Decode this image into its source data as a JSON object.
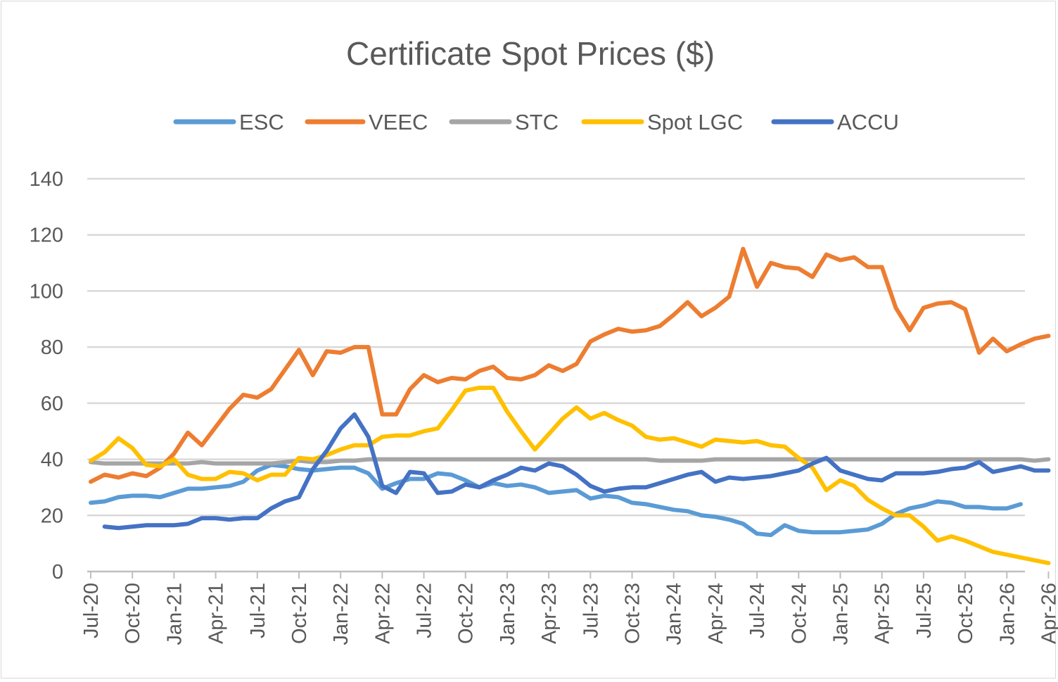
{
  "chart_data": {
    "type": "line",
    "title": "Certificate Spot Prices ($)",
    "xlabel": "",
    "ylabel": "",
    "ylim": [
      0,
      140
    ],
    "yticks": [
      "0",
      "20",
      "40",
      "60",
      "80",
      "100",
      "120",
      "140"
    ],
    "xtick_labels": [
      "Jul-20",
      "Oct-20",
      "Jan-21",
      "Apr-21",
      "Jul-21",
      "Oct-21",
      "Jan-22",
      "Apr-22",
      "Jul-22",
      "Oct-22",
      "Jan-23",
      "Apr-23",
      "Jul-23",
      "Oct-23",
      "Jan-24",
      "Apr-24",
      "Jul-24",
      "Oct-24",
      "Jan-25",
      "Apr-25",
      "Jul-25",
      "Oct-25",
      "Jan-26",
      "Apr-26"
    ],
    "x_start": "Jul-20",
    "grid": "horizontal",
    "legend": "top",
    "series": [
      {
        "name": "ESC",
        "color": "#5b9bd5",
        "values": [
          24.5,
          25,
          26.5,
          27,
          27,
          26.5,
          28,
          29.5,
          29.5,
          30,
          30.5,
          32,
          36,
          38,
          37.5,
          36.5,
          36,
          36.5,
          37,
          37,
          35,
          29.5,
          31.5,
          33,
          33,
          35,
          34.5,
          32.5,
          30,
          31.5,
          30.5,
          31,
          30,
          28,
          28.5,
          29,
          26,
          27,
          26.5,
          24.5,
          24,
          23,
          22,
          21.5,
          20,
          19.5,
          18.5,
          17,
          13.5,
          13,
          16.5,
          14.5,
          14,
          14,
          14,
          14.5,
          15,
          17,
          20.5,
          22.5,
          23.5,
          25,
          24.5,
          23,
          23,
          22.5,
          22.5,
          24
        ]
      },
      {
        "name": "VEEC",
        "color": "#ed7d31",
        "values": [
          32,
          34.5,
          33.5,
          35,
          34,
          37,
          42,
          49.5,
          45,
          51.5,
          58,
          63,
          62,
          65,
          72,
          79,
          70,
          78.5,
          78,
          80,
          80,
          56,
          56,
          65,
          70,
          67.5,
          69,
          68.5,
          71.5,
          73,
          69,
          68.5,
          70,
          73.5,
          71.5,
          74,
          82,
          84.5,
          86.5,
          85.5,
          86,
          87.5,
          91.5,
          96,
          91,
          94,
          98,
          115,
          101.5,
          110,
          108.5,
          108,
          105,
          113,
          111,
          112,
          108.5,
          108.5,
          94,
          86,
          94,
          95.5,
          96,
          93.5,
          78,
          83,
          78.5,
          81,
          83,
          84
        ]
      },
      {
        "name": "STC",
        "color": "#a5a5a5",
        "values": [
          39,
          38.5,
          38.5,
          38.5,
          38.5,
          38.5,
          38.5,
          38.5,
          39,
          38.5,
          38.5,
          38.5,
          38.5,
          38.5,
          39,
          39.5,
          39,
          39,
          39.5,
          39.5,
          40,
          40,
          40,
          40,
          40,
          40,
          40,
          40,
          40,
          40,
          40,
          40,
          40,
          40,
          40,
          40,
          40,
          40,
          40,
          40,
          40,
          39.5,
          39.5,
          39.5,
          39.5,
          40,
          40,
          40,
          40,
          40,
          40,
          40,
          40,
          40,
          40,
          40,
          40,
          40,
          40,
          40,
          40,
          40,
          40,
          40,
          40,
          40,
          40,
          40,
          39.5,
          40
        ]
      },
      {
        "name": "Spot LGC",
        "color": "#ffc000",
        "values": [
          39.5,
          42.5,
          47.5,
          44,
          38,
          37.5,
          40,
          34.5,
          33,
          33,
          35.5,
          35,
          32.5,
          34.5,
          34.5,
          40.5,
          40,
          41.5,
          43.5,
          45,
          45,
          48,
          48.5,
          48.5,
          50,
          51,
          57.5,
          64.5,
          65.5,
          65.5,
          57,
          50,
          43.5,
          49,
          54.5,
          58.5,
          54.5,
          56.5,
          54,
          52,
          48,
          47,
          47.5,
          46,
          44.5,
          47,
          46.5,
          46,
          46.5,
          45,
          44.5,
          40.5,
          37,
          29,
          32.5,
          30.5,
          25.5,
          22.5,
          20,
          20,
          16,
          11,
          12.5,
          11,
          9,
          7,
          6,
          5,
          4,
          3
        ]
      },
      {
        "name": "ACCU",
        "color": "#4472c4",
        "values": [
          null,
          16,
          15.5,
          16,
          16.5,
          16.5,
          16.5,
          17,
          19,
          19,
          18.5,
          19,
          19,
          22.5,
          25,
          26.5,
          36.5,
          43,
          51,
          56,
          48,
          30.5,
          28,
          35.5,
          35,
          28,
          28.5,
          31,
          30,
          32.5,
          34.5,
          37,
          36,
          38.5,
          37.5,
          34.5,
          30.5,
          28.5,
          29.5,
          30,
          30,
          31.5,
          33,
          34.5,
          35.5,
          32,
          33.5,
          33,
          33.5,
          34,
          35,
          36,
          38.5,
          40.5,
          36,
          34.5,
          33,
          32.5,
          35,
          35,
          35,
          35.5,
          36.5,
          37,
          39,
          35.5,
          36.5,
          37.5,
          36,
          36
        ]
      }
    ]
  }
}
